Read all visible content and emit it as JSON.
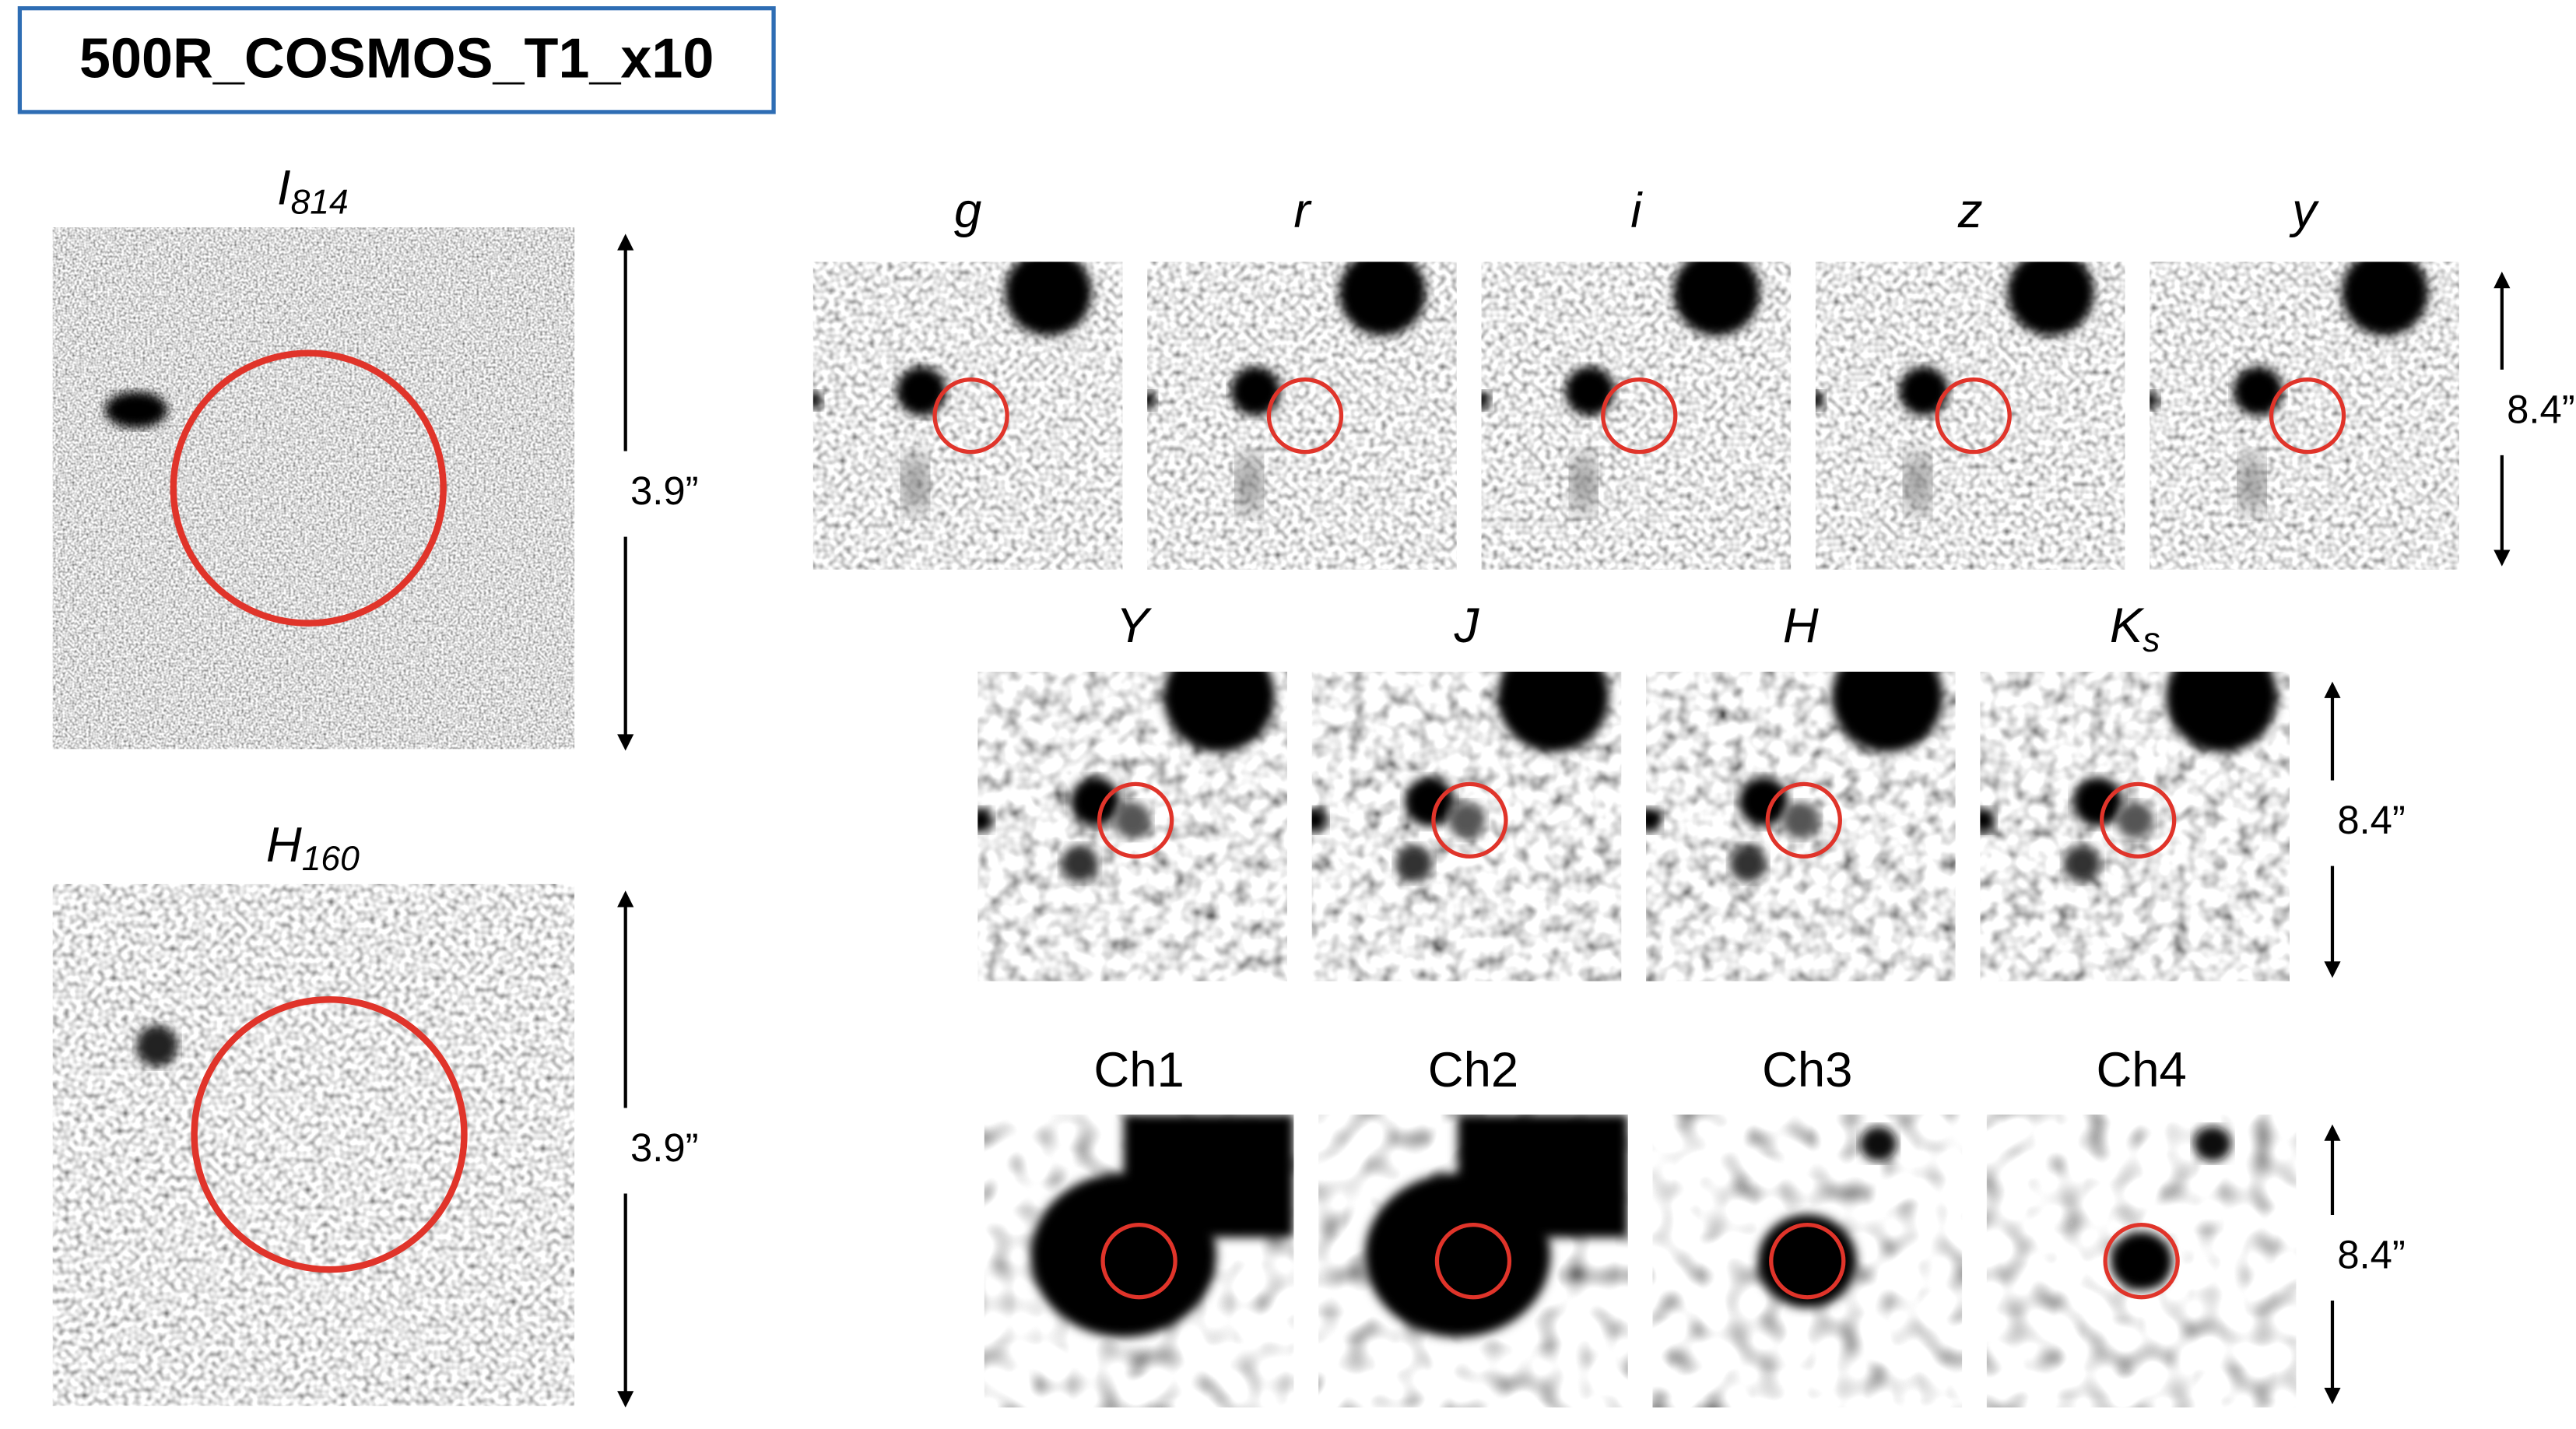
{
  "header": {
    "title": "500R_COSMOS_T1_x10"
  },
  "large_panels": [
    {
      "name": "I",
      "sub": "814",
      "scale": "3.9”"
    },
    {
      "name": "H",
      "sub": "160",
      "scale": "3.9”"
    }
  ],
  "rows": [
    {
      "bands": [
        {
          "name": "g"
        },
        {
          "name": "r"
        },
        {
          "name": "i"
        },
        {
          "name": "z"
        },
        {
          "name": "y"
        }
      ],
      "scale": "8.4”"
    },
    {
      "bands": [
        {
          "name": "Y"
        },
        {
          "name": "J"
        },
        {
          "name": "H"
        },
        {
          "name": "K",
          "sub": "s"
        }
      ],
      "scale": "8.4”"
    },
    {
      "bands": [
        {
          "name": "Ch1"
        },
        {
          "name": "Ch2"
        },
        {
          "name": "Ch3"
        },
        {
          "name": "Ch4"
        }
      ],
      "scale": "8.4”"
    }
  ]
}
